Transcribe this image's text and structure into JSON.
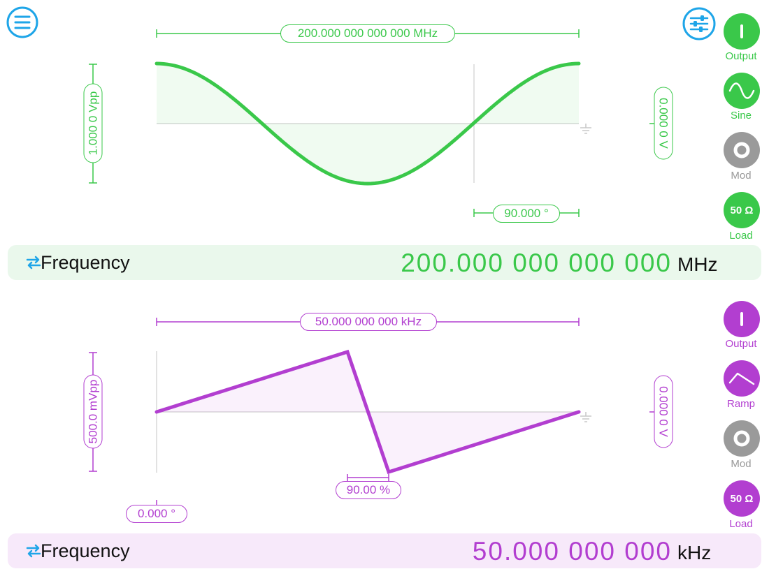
{
  "colors": {
    "green": "#3ac84a",
    "purple": "#b23ed0",
    "blue": "#1ea5e8",
    "gray": "#9a9a9a",
    "green_bg": "#eaf8ec",
    "purple_bg": "#f7e9fa"
  },
  "toolbar": {
    "menu_icon": "hamburger-menu-icon",
    "settings_icon": "sliders-icon"
  },
  "channel1": {
    "frequency_marker": "200.000 000 000 000 MHz",
    "amplitude_marker": "1.000 0 Vpp",
    "offset_marker": "0.000 0 V",
    "phase_marker": "90.000 °",
    "buttons": {
      "output_label": "Output",
      "waveform_label": "Sine",
      "mod_label": "Mod",
      "load_label": "Load",
      "load_value": "50 Ω"
    },
    "waveform": "sine",
    "frequency_bar": {
      "label": "Frequency",
      "value": "200.000 000 000 000",
      "unit": "MHz"
    }
  },
  "channel2": {
    "frequency_marker": "50.000 000 000 kHz",
    "amplitude_marker": "500.0 mVpp",
    "offset_marker": "0.000 0 V",
    "symmetry_marker": "90.00 %",
    "phase_marker": "0.000 °",
    "buttons": {
      "output_label": "Output",
      "waveform_label": "Ramp",
      "mod_label": "Mod",
      "load_label": "Load",
      "load_value": "50 Ω"
    },
    "waveform": "ramp",
    "frequency_bar": {
      "label": "Frequency",
      "value": "50.000 000 000",
      "unit": "kHz"
    }
  }
}
